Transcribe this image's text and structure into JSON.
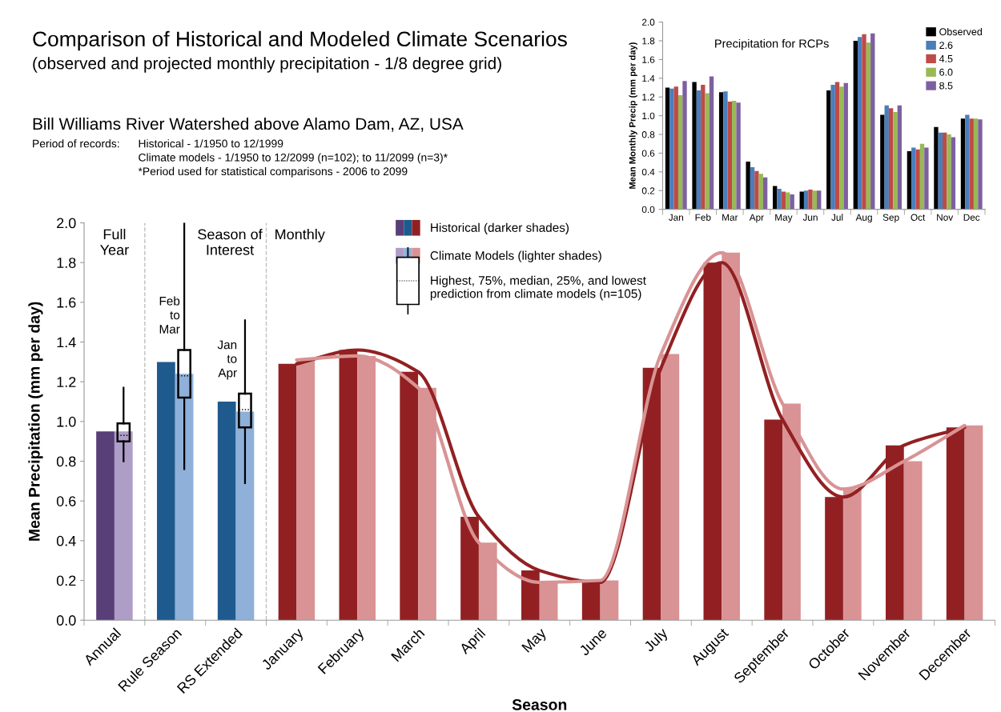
{
  "chart_data": [
    {
      "type": "bar",
      "title": "Comparison of Historical and Modeled Climate Scenarios",
      "subtitle": "(observed and projected monthly precipitation - 1/8 degree grid)",
      "xlabel": "Season",
      "ylabel": "Mean Precipitation (mm per day)",
      "categories": [
        "Annual",
        "Rule Season",
        "RS Extended",
        "January",
        "February",
        "March",
        "April",
        "May",
        "June",
        "July",
        "August",
        "September",
        "October",
        "November",
        "December"
      ],
      "series": [
        {
          "name": "Historical (darker shades)",
          "colors": [
            "#583f78",
            "#1f5a8e",
            "#1f5a8e",
            "#922022",
            "#922022",
            "#922022",
            "#922022",
            "#922022",
            "#922022",
            "#922022",
            "#922022",
            "#922022",
            "#922022",
            "#922022",
            "#922022"
          ],
          "values": [
            0.95,
            1.3,
            1.1,
            1.29,
            1.36,
            1.25,
            0.52,
            0.25,
            0.19,
            1.27,
            1.8,
            1.01,
            0.62,
            0.88,
            0.97
          ]
        },
        {
          "name": "Climate Models (lighter shades)",
          "colors": [
            "#ae9dc6",
            "#8fb0d8",
            "#8fb0d8",
            "#d99394",
            "#d99394",
            "#d99394",
            "#d99394",
            "#d99394",
            "#d99394",
            "#d99394",
            "#d99394",
            "#d99394",
            "#d99394",
            "#d99394",
            "#d99394"
          ],
          "values": [
            0.95,
            1.24,
            1.05,
            1.31,
            1.33,
            1.17,
            0.39,
            0.19,
            0.2,
            1.34,
            1.85,
            1.09,
            0.66,
            0.8,
            0.98
          ]
        },
        {
          "type": "line",
          "color": "#922022",
          "values": [
            null,
            null,
            null,
            1.29,
            1.36,
            1.25,
            0.52,
            0.25,
            0.19,
            1.27,
            1.8,
            1.01,
            0.62,
            0.88,
            0.97
          ]
        },
        {
          "type": "line",
          "color": "#d99394",
          "values": [
            null,
            null,
            null,
            1.31,
            1.33,
            1.17,
            0.39,
            0.19,
            0.2,
            1.34,
            1.85,
            1.09,
            0.66,
            0.8,
            0.98
          ]
        },
        {
          "type": "box",
          "name": "Highest, 75%, median, 25%, and lowest\nprediction from climate models (n=105)",
          "color": "#000000",
          "boxes": [
            {
              "low": 0.8,
              "q1": 0.9,
              "median": 0.93,
              "q3": 0.99,
              "high": 1.17
            },
            {
              "low": 0.76,
              "q1": 1.12,
              "median": 1.23,
              "q3": 1.36,
              "high": 2.0
            },
            {
              "low": 0.69,
              "q1": 0.97,
              "median": 1.06,
              "q3": 1.14,
              "high": 1.51
            },
            null,
            null,
            null,
            null,
            null,
            null,
            null,
            null,
            null,
            null,
            null,
            null
          ]
        }
      ],
      "ylim": [
        0,
        2.0
      ],
      "yticks": [
        {
          "value": 0,
          "label": "0.0"
        },
        {
          "value": 0.2,
          "label": "0.2"
        },
        {
          "value": 0.4,
          "label": "0.4"
        },
        {
          "value": 0.6,
          "label": "0.6"
        },
        {
          "value": 0.8,
          "label": "0.8"
        },
        {
          "value": 1.0,
          "label": "1.0"
        },
        {
          "value": 1.2,
          "label": "1.2"
        },
        {
          "value": 1.4,
          "label": "1.4"
        },
        {
          "value": 1.6,
          "label": "1.6"
        },
        {
          "value": 1.8,
          "label": "1.8"
        },
        {
          "value": 2.0,
          "label": "2.0"
        }
      ],
      "annotations": [
        "Bill Williams River Watershed above Alamo Dam, AZ, USA",
        "Period of records:",
        "Historical - 1/1950 to 12/1999",
        "Climate models - 1/1950 to 12/2099 (n=102); to 11/2099 (n=3)*",
        "*Period used for statistical comparisons - 2006 to 2099",
        "Full\nYear",
        "Season of\nInterest",
        "Monthly",
        "Feb\nto\nMar",
        "Jan\nto\nApr"
      ],
      "legend": "top",
      "grid": false
    },
    {
      "type": "bar",
      "title": "Precipitation for RCPs",
      "ylabel": "Mean Monthly Precip (mm per day)",
      "categories": [
        "Jan",
        "Feb",
        "Mar",
        "Apr",
        "May",
        "Jun",
        "Jul",
        "Aug",
        "Sep",
        "Oct",
        "Nov",
        "Dec"
      ],
      "series": [
        {
          "name": "Observed",
          "color": "#000000",
          "values": [
            1.3,
            1.36,
            1.25,
            0.51,
            0.25,
            0.19,
            1.27,
            1.8,
            1.01,
            0.62,
            0.88,
            0.97
          ]
        },
        {
          "name": "2.6",
          "color": "#4a7ebb",
          "values": [
            1.29,
            1.27,
            1.26,
            0.45,
            0.22,
            0.2,
            1.33,
            1.84,
            1.11,
            0.66,
            0.82,
            1.01
          ]
        },
        {
          "name": "4.5",
          "color": "#be4b48",
          "values": [
            1.31,
            1.33,
            1.15,
            0.41,
            0.19,
            0.21,
            1.36,
            1.87,
            1.08,
            0.64,
            0.82,
            0.97
          ]
        },
        {
          "name": "6.0",
          "color": "#98b954",
          "values": [
            1.22,
            1.24,
            1.16,
            0.38,
            0.18,
            0.2,
            1.31,
            1.78,
            1.04,
            0.7,
            0.8,
            0.97
          ]
        },
        {
          "name": "8.5",
          "color": "#7d60a0",
          "values": [
            1.37,
            1.42,
            1.14,
            0.34,
            0.16,
            0.2,
            1.35,
            1.88,
            1.11,
            0.66,
            0.77,
            0.96
          ]
        }
      ],
      "ylim": [
        0,
        2.0
      ],
      "yticks": [
        {
          "value": 0,
          "label": "0.0"
        },
        {
          "value": 0.2,
          "label": "0.2"
        },
        {
          "value": 0.4,
          "label": "0.4"
        },
        {
          "value": 0.6,
          "label": "0.6"
        },
        {
          "value": 0.8,
          "label": "0.8"
        },
        {
          "value": 1.0,
          "label": "1.0"
        },
        {
          "value": 1.2,
          "label": "1.2"
        },
        {
          "value": 1.4,
          "label": "1.4"
        },
        {
          "value": 1.6,
          "label": "1.6"
        },
        {
          "value": 1.8,
          "label": "1.8"
        },
        {
          "value": 2.0,
          "label": "2.0"
        }
      ],
      "legend": "top right",
      "grid": false
    }
  ]
}
